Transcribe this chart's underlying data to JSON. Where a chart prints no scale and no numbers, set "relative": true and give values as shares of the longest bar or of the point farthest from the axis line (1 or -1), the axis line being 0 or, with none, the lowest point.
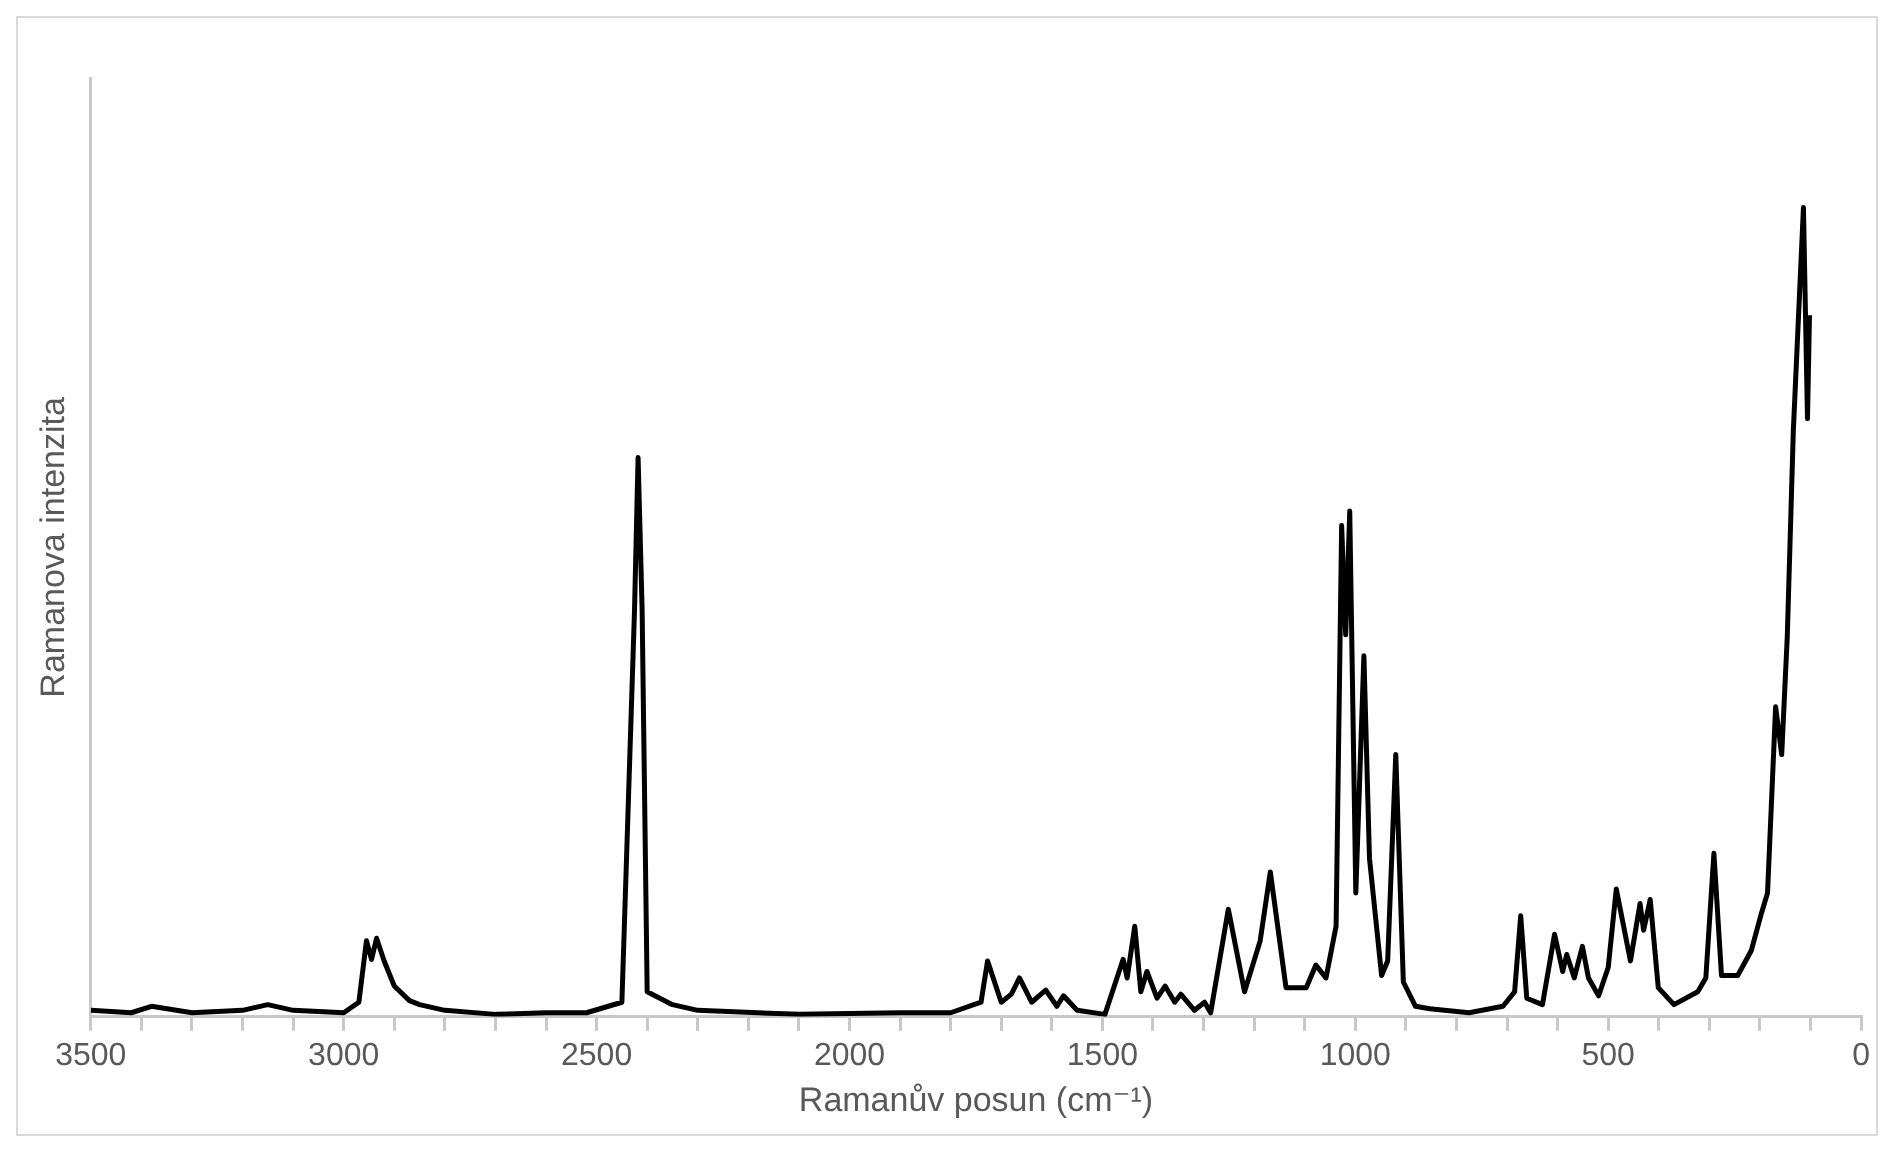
{
  "chart_data": {
    "type": "line",
    "relative": true,
    "xlabel": "Ramanův posun (cm⁻¹)",
    "ylabel": "Ramanova intenzita",
    "xlim": [
      3500,
      0
    ],
    "xticks": [
      3500,
      {
        "value": 3400,
        "label": null
      },
      {
        "value": 3300,
        "label": null
      },
      {
        "value": 3200,
        "label": null
      },
      {
        "value": 3100,
        "label": null
      },
      3000,
      {
        "value": 2900,
        "label": null
      },
      {
        "value": 2800,
        "label": null
      },
      {
        "value": 2700,
        "label": null
      },
      {
        "value": 2600,
        "label": null
      },
      2500,
      {
        "value": 2400,
        "label": null
      },
      {
        "value": 2300,
        "label": null
      },
      {
        "value": 2200,
        "label": null
      },
      {
        "value": 2100,
        "label": null
      },
      2000,
      {
        "value": 1900,
        "label": null
      },
      {
        "value": 1800,
        "label": null
      },
      {
        "value": 1700,
        "label": null
      },
      {
        "value": 1600,
        "label": null
      },
      1500,
      {
        "value": 1400,
        "label": null
      },
      {
        "value": 1300,
        "label": null
      },
      {
        "value": 1200,
        "label": null
      },
      {
        "value": 1100,
        "label": null
      },
      1000,
      {
        "value": 900,
        "label": null
      },
      {
        "value": 800,
        "label": null
      },
      {
        "value": 700,
        "label": null
      },
      {
        "value": 600,
        "label": null
      },
      500,
      {
        "value": 400,
        "label": null
      },
      {
        "value": 300,
        "label": null
      },
      {
        "value": 200,
        "label": null
      },
      {
        "value": 100,
        "label": null
      },
      0
    ],
    "grid": false,
    "legend": false,
    "marker": "none",
    "line_style": "solid",
    "series": [
      {
        "color": "#000000",
        "x": [
          3500,
          3420,
          3380,
          3300,
          3200,
          3150,
          3100,
          3000,
          2970,
          2955,
          2945,
          2935,
          2920,
          2900,
          2870,
          2850,
          2800,
          2700,
          2600,
          2520,
          2450,
          2425,
          2418,
          2410,
          2400,
          2350,
          2300,
          2100,
          1900,
          1800,
          1740,
          1727,
          1700,
          1680,
          1664,
          1640,
          1612,
          1590,
          1577,
          1550,
          1495,
          1459,
          1451,
          1436,
          1424,
          1412,
          1392,
          1376,
          1357,
          1345,
          1318,
          1298,
          1286,
          1251,
          1219,
          1188,
          1168,
          1137,
          1097,
          1078,
          1058,
          1038,
          1027,
          1019,
          1011,
          999,
          983,
          972,
          948,
          936,
          920,
          905,
          881,
          853,
          775,
          708,
          685,
          673,
          661,
          630,
          606,
          590,
          582,
          567,
          551,
          539,
          519,
          500,
          484,
          456,
          437,
          430,
          417,
          401,
          370,
          323,
          307,
          291,
          276,
          244,
          217,
          197,
          185,
          169,
          157,
          146,
          134,
          114,
          106,
          102
        ],
        "values": [
          0.008,
          0.005,
          0.013,
          0.005,
          0.008,
          0.015,
          0.008,
          0.005,
          0.018,
          0.094,
          0.071,
          0.097,
          0.069,
          0.038,
          0.02,
          0.015,
          0.008,
          0.003,
          0.005,
          0.005,
          0.018,
          0.503,
          0.691,
          0.503,
          0.031,
          0.015,
          0.008,
          0.003,
          0.005,
          0.005,
          0.018,
          0.069,
          0.018,
          0.028,
          0.048,
          0.018,
          0.033,
          0.013,
          0.026,
          0.008,
          0.003,
          0.071,
          0.048,
          0.112,
          0.031,
          0.056,
          0.023,
          0.038,
          0.018,
          0.028,
          0.008,
          0.018,
          0.005,
          0.133,
          0.031,
          0.094,
          0.179,
          0.036,
          0.036,
          0.064,
          0.048,
          0.112,
          0.607,
          0.472,
          0.625,
          0.153,
          0.446,
          0.196,
          0.051,
          0.069,
          0.324,
          0.043,
          0.013,
          0.01,
          0.005,
          0.013,
          0.031,
          0.125,
          0.023,
          0.015,
          0.102,
          0.056,
          0.077,
          0.048,
          0.087,
          0.048,
          0.026,
          0.061,
          0.158,
          0.069,
          0.14,
          0.107,
          0.145,
          0.036,
          0.015,
          0.031,
          0.048,
          0.202,
          0.051,
          0.051,
          0.082,
          0.128,
          0.153,
          0.383,
          0.324,
          0.469,
          0.724,
          1.0,
          0.739,
          0.867
        ]
      }
    ]
  }
}
